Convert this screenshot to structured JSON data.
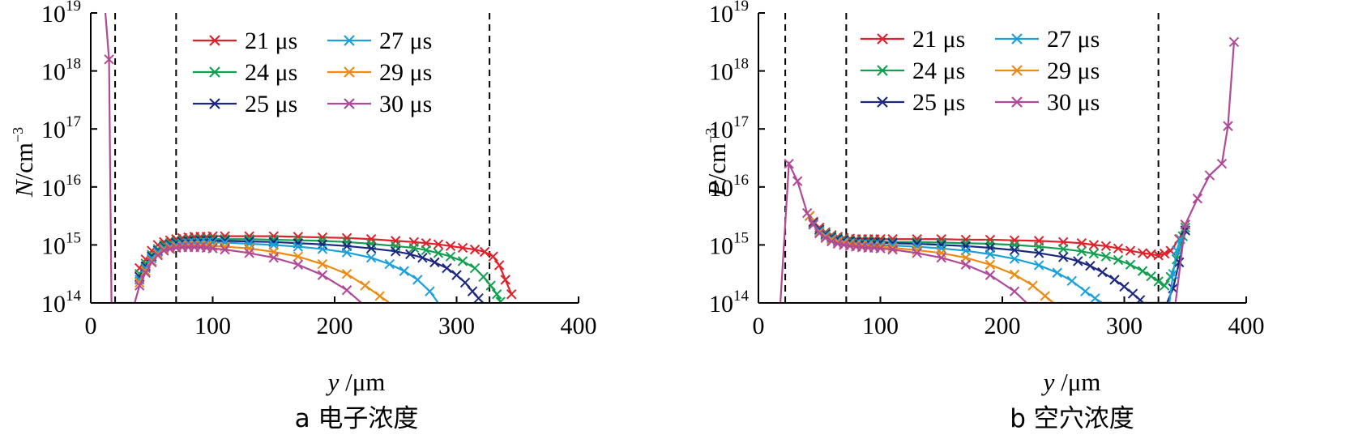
{
  "chart_data": [
    {
      "type": "line",
      "panel": "a",
      "caption": "a 电子浓度",
      "ylabel_symbol": "N",
      "ylabel_unit": "/cm",
      "ylabel_exp": "−3",
      "xlabel_symbol": "y",
      "xlabel_unit": " /μm",
      "xlim": [
        0,
        400
      ],
      "ylim_log10": [
        14,
        19
      ],
      "xticks": [
        0,
        100,
        200,
        300,
        400
      ],
      "yticks": [
        {
          "base": "10",
          "exp": "14",
          "value": 14
        },
        {
          "base": "10",
          "exp": "15",
          "value": 15
        },
        {
          "base": "10",
          "exp": "16",
          "value": 16
        },
        {
          "base": "10",
          "exp": "17",
          "value": 17
        },
        {
          "base": "10",
          "exp": "18",
          "value": 18
        },
        {
          "base": "10",
          "exp": "19",
          "value": 19
        }
      ],
      "vlines": [
        20,
        70,
        327
      ],
      "legend": {
        "position": "top-center",
        "columns": 2
      },
      "series": [
        {
          "name": "21 μs",
          "color": "#e0202a",
          "x": [
            40,
            45,
            50,
            55,
            60,
            65,
            70,
            75,
            80,
            85,
            90,
            95,
            100,
            110,
            130,
            150,
            170,
            190,
            210,
            230,
            250,
            265,
            275,
            285,
            295,
            305,
            315,
            323,
            330,
            335,
            340,
            345
          ],
          "log10": [
            14.6,
            14.75,
            14.9,
            15.0,
            15.05,
            15.08,
            15.1,
            15.12,
            15.13,
            15.14,
            15.14,
            15.14,
            15.15,
            15.15,
            15.15,
            15.15,
            15.14,
            15.13,
            15.12,
            15.1,
            15.07,
            15.05,
            15.03,
            15.01,
            14.98,
            14.95,
            14.92,
            14.88,
            14.8,
            14.65,
            14.4,
            14.15
          ]
        },
        {
          "name": "24 μs",
          "color": "#10a050",
          "x": [
            40,
            45,
            50,
            55,
            60,
            65,
            70,
            75,
            80,
            85,
            90,
            95,
            100,
            110,
            130,
            150,
            170,
            190,
            210,
            230,
            250,
            265,
            275,
            285,
            295,
            305,
            315,
            322,
            328,
            333,
            336
          ],
          "log10": [
            14.5,
            14.68,
            14.83,
            14.93,
            15.0,
            15.03,
            15.06,
            15.08,
            15.09,
            15.09,
            15.1,
            15.1,
            15.1,
            15.1,
            15.1,
            15.09,
            15.08,
            15.07,
            15.05,
            15.02,
            14.98,
            14.95,
            14.91,
            14.86,
            14.8,
            14.72,
            14.6,
            14.45,
            14.3,
            14.15,
            14.02
          ]
        },
        {
          "name": "25 μs",
          "color": "#1c2880",
          "x": [
            40,
            45,
            50,
            55,
            60,
            65,
            70,
            75,
            80,
            85,
            90,
            95,
            100,
            110,
            130,
            150,
            170,
            190,
            210,
            230,
            250,
            262,
            272,
            282,
            292,
            300,
            307,
            313,
            318,
            322
          ],
          "log10": [
            14.45,
            14.63,
            14.8,
            14.9,
            14.97,
            15.0,
            15.03,
            15.05,
            15.06,
            15.06,
            15.07,
            15.07,
            15.07,
            15.07,
            15.06,
            15.05,
            15.03,
            15.01,
            14.98,
            14.94,
            14.89,
            14.84,
            14.78,
            14.7,
            14.6,
            14.48,
            14.35,
            14.2,
            14.08,
            14.0
          ]
        },
        {
          "name": "27 μs",
          "color": "#1aa0dc",
          "x": [
            40,
            45,
            50,
            55,
            60,
            65,
            70,
            75,
            80,
            85,
            90,
            95,
            100,
            110,
            130,
            150,
            170,
            190,
            210,
            230,
            245,
            257,
            268,
            278,
            285
          ],
          "log10": [
            14.4,
            14.6,
            14.77,
            14.88,
            14.95,
            14.98,
            15.0,
            15.02,
            15.03,
            15.03,
            15.04,
            15.04,
            15.04,
            15.04,
            15.02,
            15.0,
            14.97,
            14.93,
            14.87,
            14.78,
            14.67,
            14.55,
            14.4,
            14.2,
            14.0
          ]
        },
        {
          "name": "29 μs",
          "color": "#ee8a10",
          "x": [
            40,
            45,
            50,
            55,
            60,
            65,
            70,
            75,
            80,
            85,
            90,
            95,
            100,
            110,
            130,
            150,
            170,
            190,
            210,
            225,
            237,
            245
          ],
          "log10": [
            14.35,
            14.55,
            14.72,
            14.84,
            14.92,
            14.95,
            14.97,
            14.98,
            14.99,
            14.99,
            14.99,
            14.99,
            14.98,
            14.97,
            14.94,
            14.88,
            14.8,
            14.67,
            14.5,
            14.3,
            14.12,
            14.0
          ]
        },
        {
          "name": "30 μs",
          "color": "#b04a98",
          "x": [
            12,
            15,
            17,
            36,
            40,
            45,
            50,
            55,
            60,
            65,
            70,
            75,
            80,
            85,
            90,
            95,
            100,
            110,
            130,
            150,
            170,
            190,
            210,
            222
          ],
          "log10": [
            19.0,
            18.2,
            14.0,
            14.0,
            14.3,
            14.52,
            14.7,
            14.82,
            14.9,
            14.93,
            14.95,
            14.96,
            14.96,
            14.96,
            14.96,
            14.95,
            14.94,
            14.92,
            14.86,
            14.78,
            14.66,
            14.48,
            14.22,
            14.0
          ]
        }
      ]
    },
    {
      "type": "line",
      "panel": "b",
      "caption": "b 空穴浓度",
      "ylabel_symbol": "P",
      "ylabel_unit": "/cm",
      "ylabel_exp": "−3",
      "xlabel_symbol": "y",
      "xlabel_unit": " /μm",
      "xlim": [
        0,
        400
      ],
      "ylim_log10": [
        14,
        19
      ],
      "xticks": [
        0,
        100,
        200,
        300,
        400
      ],
      "yticks": [
        {
          "base": "10",
          "exp": "14",
          "value": 14
        },
        {
          "base": "10",
          "exp": "15",
          "value": 15
        },
        {
          "base": "10",
          "exp": "16",
          "value": 16
        },
        {
          "base": "10",
          "exp": "17",
          "value": 17
        },
        {
          "base": "10",
          "exp": "18",
          "value": 18
        },
        {
          "base": "10",
          "exp": "19",
          "value": 19
        }
      ],
      "vlines": [
        22,
        72,
        328
      ],
      "legend": {
        "position": "top-center",
        "columns": 2
      },
      "series": [
        {
          "name": "21 μs",
          "color": "#e0202a",
          "x": [
            42,
            45,
            50,
            55,
            60,
            65,
            70,
            75,
            80,
            85,
            90,
            95,
            100,
            110,
            130,
            150,
            170,
            190,
            210,
            230,
            250,
            265,
            275,
            285,
            295,
            305,
            315,
            322,
            328,
            333,
            338,
            345,
            350
          ],
          "log10": [
            15.5,
            15.4,
            15.3,
            15.22,
            15.17,
            15.14,
            15.12,
            15.11,
            15.1,
            15.1,
            15.1,
            15.1,
            15.1,
            15.1,
            15.1,
            15.1,
            15.09,
            15.09,
            15.08,
            15.07,
            15.05,
            15.03,
            15.0,
            14.98,
            14.94,
            14.9,
            14.86,
            14.84,
            14.82,
            14.85,
            14.9,
            15.1,
            15.35
          ]
        },
        {
          "name": "24 μs",
          "color": "#10a050",
          "x": [
            42,
            45,
            50,
            55,
            60,
            65,
            70,
            75,
            80,
            85,
            90,
            95,
            100,
            110,
            130,
            150,
            170,
            190,
            210,
            230,
            250,
            265,
            275,
            285,
            295,
            305,
            315,
            322,
            328,
            333,
            338,
            343,
            348,
            350
          ],
          "log10": [
            15.5,
            15.38,
            15.27,
            15.2,
            15.15,
            15.12,
            15.1,
            15.08,
            15.07,
            15.06,
            15.06,
            15.06,
            15.06,
            15.05,
            15.05,
            15.04,
            15.03,
            15.02,
            15.0,
            14.97,
            14.93,
            14.89,
            14.85,
            14.8,
            14.74,
            14.66,
            14.55,
            14.46,
            14.37,
            14.3,
            14.45,
            14.75,
            15.15,
            15.3
          ]
        },
        {
          "name": "25 μs",
          "color": "#1c2880",
          "x": [
            42,
            45,
            50,
            55,
            60,
            65,
            70,
            75,
            80,
            85,
            90,
            95,
            100,
            110,
            130,
            150,
            170,
            190,
            210,
            230,
            250,
            262,
            272,
            282,
            292,
            300,
            307,
            313,
            316,
            335,
            340,
            345,
            350
          ],
          "log10": [
            15.5,
            15.38,
            15.26,
            15.18,
            15.13,
            15.1,
            15.08,
            15.06,
            15.05,
            15.04,
            15.04,
            15.04,
            15.04,
            15.03,
            15.02,
            15.0,
            14.98,
            14.95,
            14.91,
            14.86,
            14.79,
            14.72,
            14.64,
            14.53,
            14.4,
            14.28,
            14.16,
            14.05,
            14.0,
            14.0,
            14.25,
            14.7,
            15.25
          ]
        },
        {
          "name": "27 μs",
          "color": "#1aa0dc",
          "x": [
            42,
            45,
            50,
            55,
            60,
            65,
            70,
            75,
            80,
            85,
            90,
            95,
            100,
            110,
            130,
            150,
            170,
            190,
            210,
            230,
            245,
            257,
            268,
            276,
            282,
            337,
            340,
            343,
            346
          ],
          "log10": [
            15.5,
            15.36,
            15.24,
            15.16,
            15.11,
            15.07,
            15.05,
            15.03,
            15.02,
            15.01,
            15.01,
            15.0,
            15.0,
            14.99,
            14.97,
            14.94,
            14.9,
            14.84,
            14.76,
            14.65,
            14.52,
            14.38,
            14.2,
            14.08,
            14.0,
            14.0,
            14.5,
            14.9,
            15.1
          ]
        },
        {
          "name": "29 μs",
          "color": "#ee8a10",
          "x": [
            42,
            45,
            50,
            55,
            60,
            65,
            70,
            75,
            80,
            85,
            90,
            95,
            100,
            110,
            130,
            150,
            170,
            190,
            210,
            225,
            235,
            242
          ],
          "log10": [
            15.5,
            15.35,
            15.22,
            15.14,
            15.09,
            15.05,
            15.03,
            15.01,
            15.0,
            14.99,
            14.98,
            14.97,
            14.97,
            14.95,
            14.91,
            14.86,
            14.78,
            14.66,
            14.49,
            14.3,
            14.12,
            14.0
          ]
        },
        {
          "name": "30 μs",
          "color": "#b04a98",
          "x": [
            18,
            25,
            32,
            40,
            45,
            50,
            55,
            60,
            65,
            70,
            75,
            80,
            85,
            90,
            95,
            100,
            110,
            130,
            150,
            170,
            190,
            210,
            220,
            342,
            350,
            360,
            370,
            380,
            385,
            390
          ],
          "log10": [
            14.0,
            16.4,
            16.1,
            15.55,
            15.35,
            15.2,
            15.12,
            15.06,
            15.02,
            15.0,
            14.98,
            14.97,
            14.96,
            14.95,
            14.95,
            14.94,
            14.92,
            14.86,
            14.78,
            14.66,
            14.48,
            14.2,
            14.0,
            14.0,
            15.35,
            15.8,
            16.2,
            16.4,
            17.05,
            18.5
          ]
        }
      ]
    }
  ]
}
